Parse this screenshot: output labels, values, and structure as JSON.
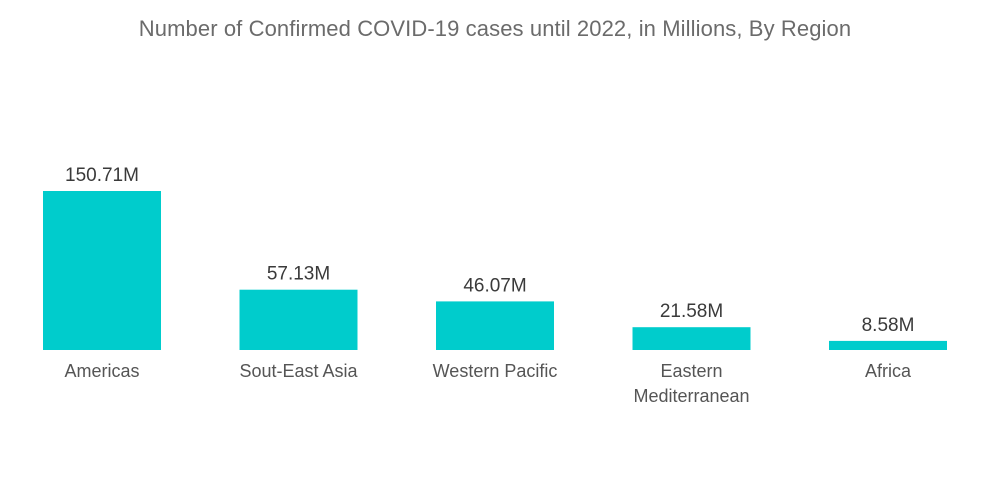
{
  "chart_data": {
    "type": "bar",
    "title": "Number of Confirmed COVID-19 cases until 2022, in Millions, By Region",
    "categories": [
      [
        "Americas"
      ],
      [
        "Sout-East Asia"
      ],
      [
        "Western Pacific"
      ],
      [
        "Eastern",
        "Mediterranean"
      ],
      [
        "Africa"
      ]
    ],
    "values": [
      150.71,
      57.13,
      46.07,
      21.58,
      8.58
    ],
    "data_labels": [
      "150.71M",
      "57.13M",
      "46.07M",
      "21.58M",
      "8.58M"
    ],
    "xlabel": "",
    "ylabel": "",
    "ylim": [
      0,
      150.71
    ],
    "grid": false,
    "legend": "none",
    "colors": {
      "bar": "#00cccc"
    }
  }
}
